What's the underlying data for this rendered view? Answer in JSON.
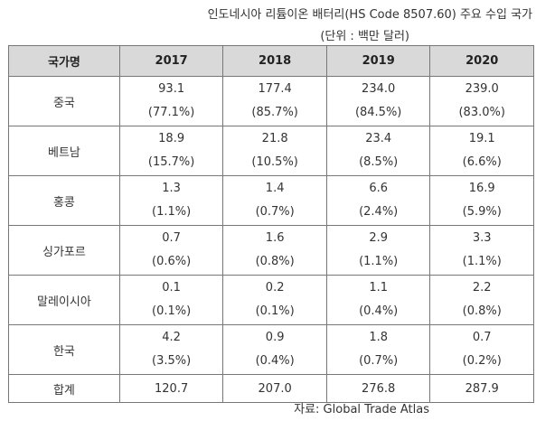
{
  "title": "인도네시아 리튬이온 배터리(HS Code 8507.60) 주요 수입 국가",
  "unit": "(단위 : 백만 달러)",
  "table": {
    "headers": [
      "국가명",
      "2017",
      "2018",
      "2019",
      "2020"
    ],
    "rows": [
      {
        "country": "중국",
        "cells": [
          {
            "value": "93.1",
            "share": "(77.1%)"
          },
          {
            "value": "177.4",
            "share": "(85.7%)"
          },
          {
            "value": "234.0",
            "share": "(84.5%)"
          },
          {
            "value": "239.0",
            "share": "(83.0%)"
          }
        ]
      },
      {
        "country": "베트남",
        "cells": [
          {
            "value": "18.9",
            "share": "(15.7%)"
          },
          {
            "value": "21.8",
            "share": "(10.5%)"
          },
          {
            "value": "23.4",
            "share": "(8.5%)"
          },
          {
            "value": "19.1",
            "share": "(6.6%)"
          }
        ]
      },
      {
        "country": "홍콩",
        "cells": [
          {
            "value": "1.3",
            "share": "(1.1%)"
          },
          {
            "value": "1.4",
            "share": "(0.7%)"
          },
          {
            "value": "6.6",
            "share": "(2.4%)"
          },
          {
            "value": "16.9",
            "share": "(5.9%)"
          }
        ]
      },
      {
        "country": "싱가포르",
        "cells": [
          {
            "value": "0.7",
            "share": "(0.6%)"
          },
          {
            "value": "1.6",
            "share": "(0.8%)"
          },
          {
            "value": "2.9",
            "share": "(1.1%)"
          },
          {
            "value": "3.3",
            "share": "(1.1%)"
          }
        ]
      },
      {
        "country": "말레이시아",
        "cells": [
          {
            "value": "0.1",
            "share": "(0.1%)"
          },
          {
            "value": "0.2",
            "share": "(0.1%)"
          },
          {
            "value": "1.1",
            "share": "(0.4%)"
          },
          {
            "value": "2.2",
            "share": "(0.8%)"
          }
        ]
      },
      {
        "country": "한국",
        "cells": [
          {
            "value": "4.2",
            "share": "(3.5%)"
          },
          {
            "value": "0.9",
            "share": "(0.4%)"
          },
          {
            "value": "1.8",
            "share": "(0.7%)"
          },
          {
            "value": "0.7",
            "share": "(0.2%)"
          }
        ]
      }
    ],
    "total": {
      "label": "합계",
      "values": [
        "120.7",
        "207.0",
        "276.8",
        "287.9"
      ]
    }
  },
  "source": "자료: Global Trade Atlas",
  "colors": {
    "header_bg": "#d9d9d9",
    "border": "#777777",
    "text": "#333333"
  }
}
